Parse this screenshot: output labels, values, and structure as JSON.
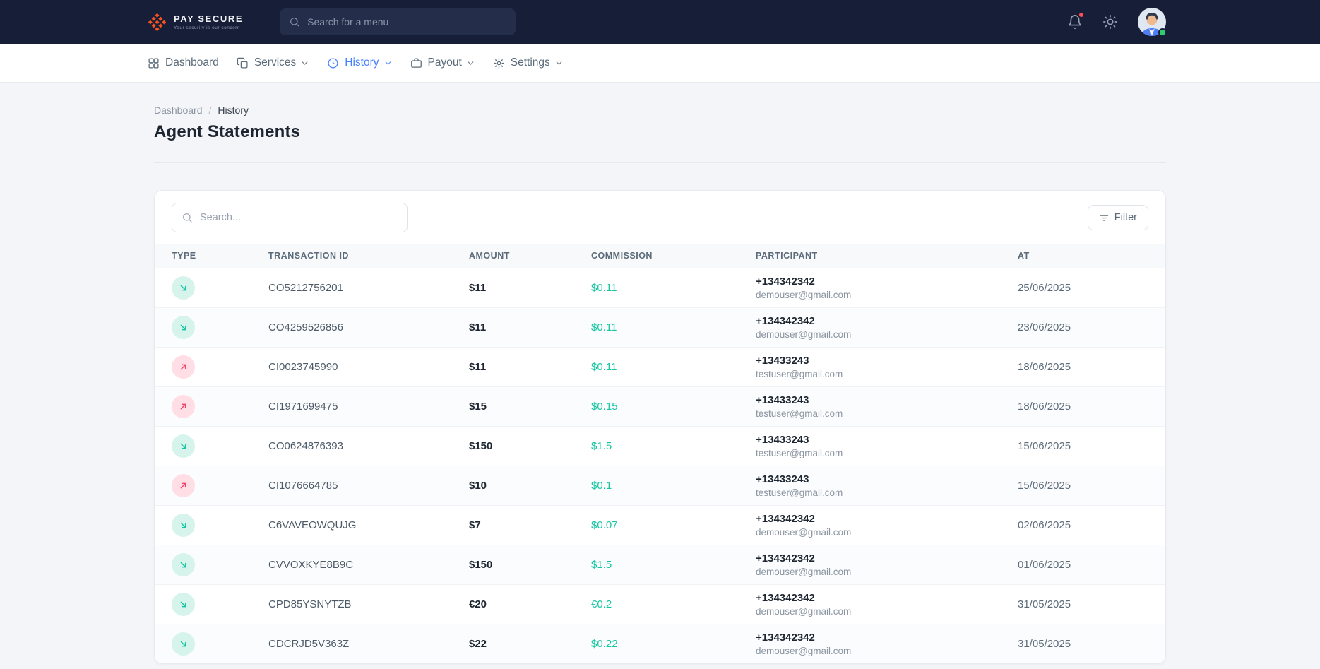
{
  "colors": {
    "topbar-bg": "#171f38",
    "accent": "#4680ff",
    "success": "#17c5a2",
    "success-bg": "#d7f4ec",
    "danger": "#f4436c",
    "danger-bg": "#ffdee6",
    "brand-orange": "#f4511e",
    "page-bg": "#f4f5f8"
  },
  "header": {
    "brand": {
      "name": "PAY SECURE",
      "tagline": "Your security is our concern"
    },
    "search_placeholder": "Search for a menu"
  },
  "nav": {
    "items": [
      {
        "label": "Dashboard",
        "icon": "dashboard-icon",
        "active": false,
        "has_dropdown": false
      },
      {
        "label": "Services",
        "icon": "services-icon",
        "active": false,
        "has_dropdown": true
      },
      {
        "label": "History",
        "icon": "history-icon",
        "active": true,
        "has_dropdown": true
      },
      {
        "label": "Payout",
        "icon": "payout-icon",
        "active": false,
        "has_dropdown": true
      },
      {
        "label": "Settings",
        "icon": "settings-icon",
        "active": false,
        "has_dropdown": true
      }
    ]
  },
  "page": {
    "breadcrumb": [
      "Dashboard",
      "History"
    ],
    "breadcrumb_separator": "/",
    "title": "Agent Statements"
  },
  "table_card": {
    "search_placeholder": "Search...",
    "filter_label": "Filter",
    "columns": [
      "TYPE",
      "TRANSACTION ID",
      "AMOUNT",
      "COMMISSION",
      "PARTICIPANT",
      "AT"
    ],
    "rows": [
      {
        "type": "out",
        "transaction_id": "CO5212756201",
        "amount": "$11",
        "commission": "$0.11",
        "participant_phone": "+134342342",
        "participant_email": "demouser@gmail.com",
        "at": "25/06/2025"
      },
      {
        "type": "out",
        "transaction_id": "CO4259526856",
        "amount": "$11",
        "commission": "$0.11",
        "participant_phone": "+134342342",
        "participant_email": "demouser@gmail.com",
        "at": "23/06/2025"
      },
      {
        "type": "in",
        "transaction_id": "CI0023745990",
        "amount": "$11",
        "commission": "$0.11",
        "participant_phone": "+13433243",
        "participant_email": "testuser@gmail.com",
        "at": "18/06/2025"
      },
      {
        "type": "in",
        "transaction_id": "CI1971699475",
        "amount": "$15",
        "commission": "$0.15",
        "participant_phone": "+13433243",
        "participant_email": "testuser@gmail.com",
        "at": "18/06/2025"
      },
      {
        "type": "out",
        "transaction_id": "CO0624876393",
        "amount": "$150",
        "commission": "$1.5",
        "participant_phone": "+13433243",
        "participant_email": "testuser@gmail.com",
        "at": "15/06/2025"
      },
      {
        "type": "in",
        "transaction_id": "CI1076664785",
        "amount": "$10",
        "commission": "$0.1",
        "participant_phone": "+13433243",
        "participant_email": "testuser@gmail.com",
        "at": "15/06/2025"
      },
      {
        "type": "out",
        "transaction_id": "C6VAVEOWQUJG",
        "amount": "$7",
        "commission": "$0.07",
        "participant_phone": "+134342342",
        "participant_email": "demouser@gmail.com",
        "at": "02/06/2025"
      },
      {
        "type": "out",
        "transaction_id": "CVVOXKYE8B9C",
        "amount": "$150",
        "commission": "$1.5",
        "participant_phone": "+134342342",
        "participant_email": "demouser@gmail.com",
        "at": "01/06/2025"
      },
      {
        "type": "out",
        "transaction_id": "CPD85YSNYTZB",
        "amount": "€20",
        "commission": "€0.2",
        "participant_phone": "+134342342",
        "participant_email": "demouser@gmail.com",
        "at": "31/05/2025"
      },
      {
        "type": "out",
        "transaction_id": "CDCRJD5V363Z",
        "amount": "$22",
        "commission": "$0.22",
        "participant_phone": "+134342342",
        "participant_email": "demouser@gmail.com",
        "at": "31/05/2025"
      }
    ]
  }
}
